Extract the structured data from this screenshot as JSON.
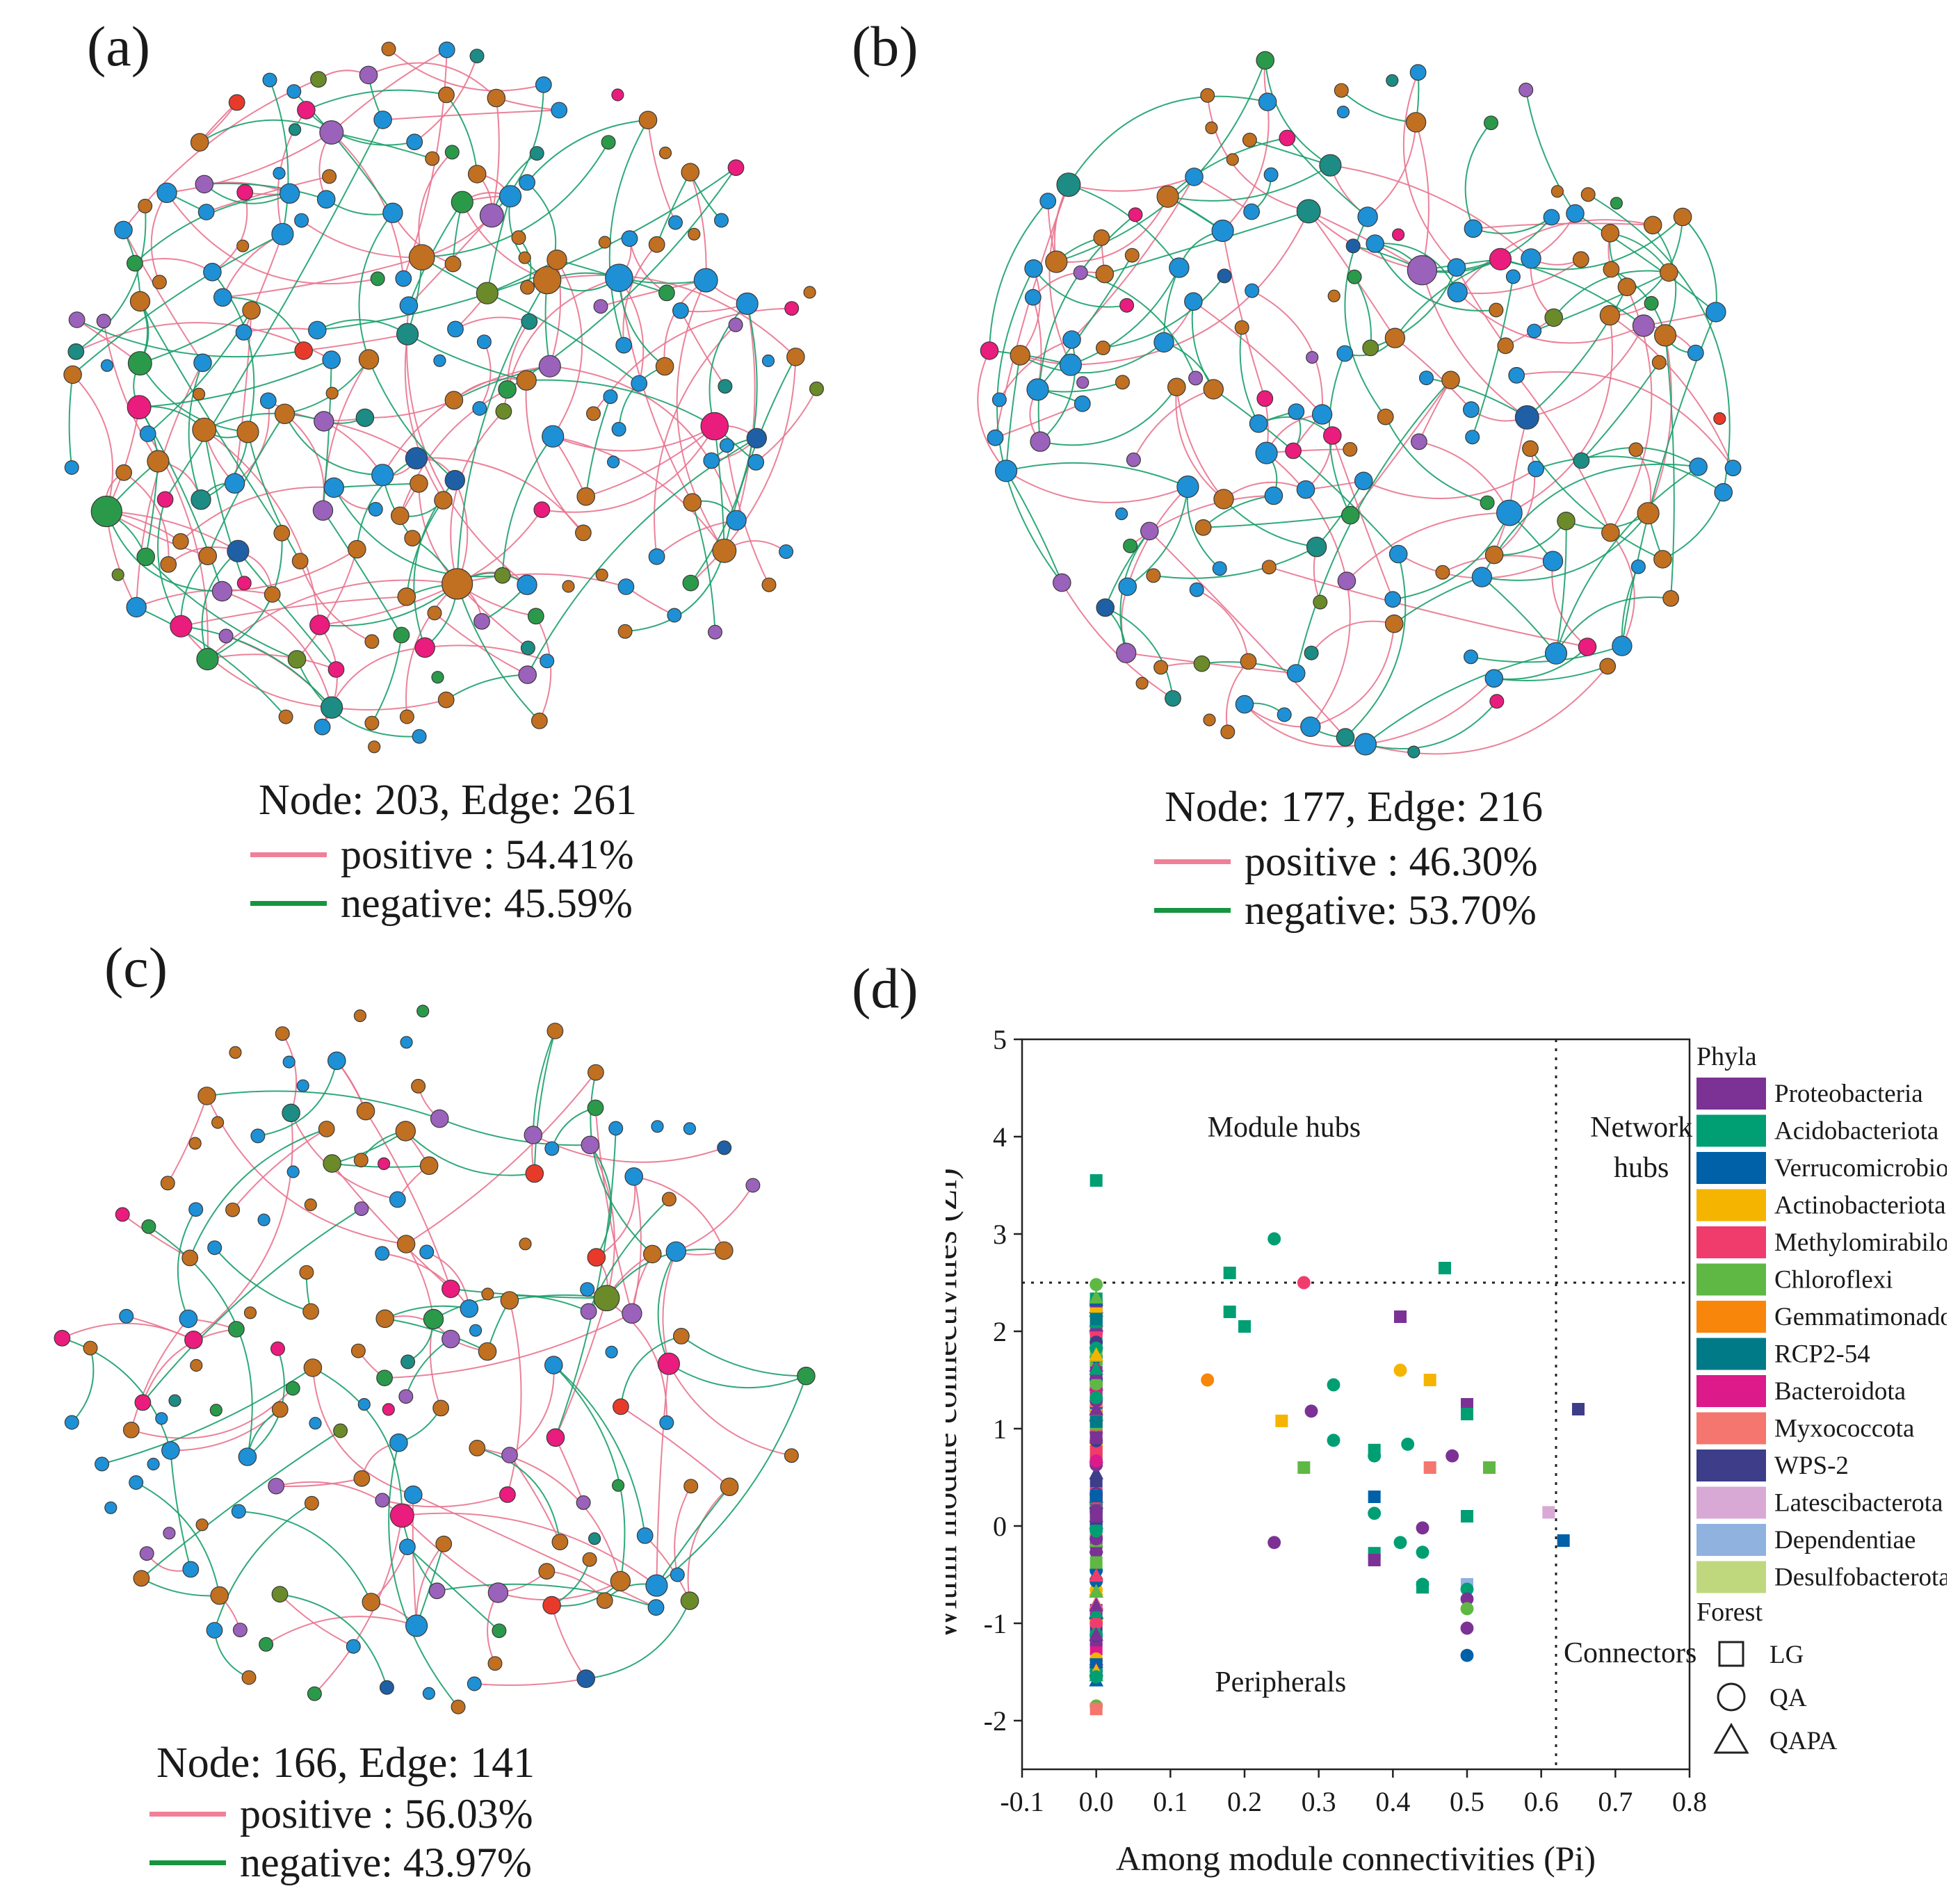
{
  "colors": {
    "positive_edge": "#e9748f",
    "negative_edge": "#1aa06c",
    "positive_legend": "#f08097",
    "negative_legend": "#16953f",
    "node_palette": [
      "#c07020",
      "#1e90d6",
      "#9a62ba",
      "#ea1c7d",
      "#2a9a4a",
      "#1c8c84",
      "#e83a2a",
      "#6b8a2a",
      "#1f5fa6"
    ]
  },
  "networks": [
    {
      "id": "a",
      "label": "(a)",
      "node_count": 203,
      "edge_count": 261,
      "stats_text": "Node: 203, Edge: 261",
      "positive_text": "positive : 54.41%",
      "negative_text": "negative: 45.59%",
      "positive_pct": 54.41,
      "negative_pct": 45.59
    },
    {
      "id": "b",
      "label": "(b)",
      "node_count": 177,
      "edge_count": 216,
      "stats_text": "Node: 177, Edge: 216",
      "positive_text": "positive : 46.30%",
      "negative_text": "negative: 53.70%",
      "positive_pct": 46.3,
      "negative_pct": 53.7
    },
    {
      "id": "c",
      "label": "(c)",
      "node_count": 166,
      "edge_count": 141,
      "stats_text": "Node: 166, Edge: 141",
      "positive_text": "positive : 56.03%",
      "negative_text": "negative: 43.97%",
      "positive_pct": 56.03,
      "negative_pct": 43.97
    }
  ],
  "chart_data": {
    "label": "(d)",
    "type": "scatter",
    "xlabel": "Among module connectivities (Pi)",
    "ylabel": "Within module connectivities (Zi)",
    "xlim": [
      -0.1,
      0.8
    ],
    "ylim": [
      -2.5,
      5
    ],
    "xticks": [
      "-0.1",
      "0.0",
      "0.1",
      "0.2",
      "0.3",
      "0.4",
      "0.5",
      "0.6",
      "0.7",
      "0.8"
    ],
    "yticks": [
      "-2",
      "-1",
      "0",
      "1",
      "2",
      "3",
      "4",
      "5"
    ],
    "thresholds": {
      "pi": 0.62,
      "zi": 2.5
    },
    "regions": [
      "Module hubs",
      "Network hubs",
      "Peripherals",
      "Connectors"
    ],
    "legend": {
      "phyla_title": "Phyla",
      "phyla": [
        {
          "name": "Proteobacteria",
          "color": "#7b3294"
        },
        {
          "name": "Acidobacteriota",
          "color": "#009e73"
        },
        {
          "name": "Verrucomicrobiota",
          "color": "#0060a8"
        },
        {
          "name": "Actinobacteriota",
          "color": "#f5b400"
        },
        {
          "name": "Methylomirabilota",
          "color": "#f03c6c"
        },
        {
          "name": "Chloroflexi",
          "color": "#5fb844"
        },
        {
          "name": "Gemmatimonadota",
          "color": "#f7860a"
        },
        {
          "name": "RCP2-54",
          "color": "#007a87"
        },
        {
          "name": "Bacteroidota",
          "color": "#dc1a8a"
        },
        {
          "name": "Myxococcota",
          "color": "#f4766e"
        },
        {
          "name": "WPS-2",
          "color": "#3d3d8a"
        },
        {
          "name": "Latescibacterota",
          "color": "#d9a9d6"
        },
        {
          "name": "Dependentiae",
          "color": "#8fb2df"
        },
        {
          "name": "Desulfobacterota",
          "color": "#bfd87e"
        }
      ],
      "forest_title": "Forest",
      "forests": [
        {
          "name": "LG",
          "shape": "square"
        },
        {
          "name": "QA",
          "shape": "circle"
        },
        {
          "name": "QAPA",
          "shape": "triangle"
        }
      ]
    },
    "points": [
      {
        "pi": 0.0,
        "zi": 3.55,
        "phylum": "Acidobacteriota",
        "forest": "LG"
      },
      {
        "pi": 0.18,
        "zi": 2.6,
        "phylum": "Acidobacteriota",
        "forest": "LG"
      },
      {
        "pi": 0.24,
        "zi": 2.95,
        "phylum": "Acidobacteriota",
        "forest": "QA"
      },
      {
        "pi": 0.28,
        "zi": 2.5,
        "phylum": "Methylomirabilota",
        "forest": "QA"
      },
      {
        "pi": 0.47,
        "zi": 2.65,
        "phylum": "Acidobacteriota",
        "forest": "LG"
      },
      {
        "pi": 0.18,
        "zi": 2.2,
        "phylum": "Acidobacteriota",
        "forest": "LG"
      },
      {
        "pi": 0.2,
        "zi": 2.05,
        "phylum": "Acidobacteriota",
        "forest": "LG"
      },
      {
        "pi": 0.41,
        "zi": 2.15,
        "phylum": "Proteobacteria",
        "forest": "LG"
      },
      {
        "pi": 0.15,
        "zi": 1.5,
        "phylum": "Gemmatimonadota",
        "forest": "QA"
      },
      {
        "pi": 0.41,
        "zi": 1.6,
        "phylum": "Actinobacteriota",
        "forest": "QA"
      },
      {
        "pi": 0.45,
        "zi": 1.5,
        "phylum": "Actinobacteriota",
        "forest": "LG"
      },
      {
        "pi": 0.32,
        "zi": 1.45,
        "phylum": "Acidobacteriota",
        "forest": "QA"
      },
      {
        "pi": 0.5,
        "zi": 1.25,
        "phylum": "Proteobacteria",
        "forest": "LG"
      },
      {
        "pi": 0.5,
        "zi": 1.15,
        "phylum": "Acidobacteriota",
        "forest": "LG"
      },
      {
        "pi": 0.65,
        "zi": 1.2,
        "phylum": "WPS-2",
        "forest": "LG"
      },
      {
        "pi": 0.29,
        "zi": 1.18,
        "phylum": "Proteobacteria",
        "forest": "QA"
      },
      {
        "pi": 0.25,
        "zi": 1.08,
        "phylum": "Actinobacteriota",
        "forest": "LG"
      },
      {
        "pi": 0.32,
        "zi": 0.88,
        "phylum": "Acidobacteriota",
        "forest": "QA"
      },
      {
        "pi": 0.375,
        "zi": 0.78,
        "phylum": "Acidobacteriota",
        "forest": "LG"
      },
      {
        "pi": 0.375,
        "zi": 0.72,
        "phylum": "Acidobacteriota",
        "forest": "QA"
      },
      {
        "pi": 0.42,
        "zi": 0.84,
        "phylum": "Acidobacteriota",
        "forest": "QA"
      },
      {
        "pi": 0.48,
        "zi": 0.72,
        "phylum": "Proteobacteria",
        "forest": "QA"
      },
      {
        "pi": 0.28,
        "zi": 0.6,
        "phylum": "Chloroflexi",
        "forest": "LG"
      },
      {
        "pi": 0.45,
        "zi": 0.6,
        "phylum": "Myxococcota",
        "forest": "LG"
      },
      {
        "pi": 0.53,
        "zi": 0.6,
        "phylum": "Chloroflexi",
        "forest": "LG"
      },
      {
        "pi": 0.375,
        "zi": 0.3,
        "phylum": "Verrucomicrobiota",
        "forest": "LG"
      },
      {
        "pi": 0.375,
        "zi": 0.13,
        "phylum": "Acidobacteriota",
        "forest": "QA"
      },
      {
        "pi": 0.5,
        "zi": 0.1,
        "phylum": "Acidobacteriota",
        "forest": "LG"
      },
      {
        "pi": 0.61,
        "zi": 0.14,
        "phylum": "Latescibacterota",
        "forest": "LG"
      },
      {
        "pi": 0.44,
        "zi": -0.02,
        "phylum": "Proteobacteria",
        "forest": "QA"
      },
      {
        "pi": 0.63,
        "zi": -0.15,
        "phylum": "Verrucomicrobiota",
        "forest": "LG"
      },
      {
        "pi": 0.24,
        "zi": -0.17,
        "phylum": "Proteobacteria",
        "forest": "QA"
      },
      {
        "pi": 0.41,
        "zi": -0.17,
        "phylum": "Acidobacteriota",
        "forest": "QA"
      },
      {
        "pi": 0.44,
        "zi": -0.27,
        "phylum": "Acidobacteriota",
        "forest": "QA"
      },
      {
        "pi": 0.375,
        "zi": -0.28,
        "phylum": "Acidobacteriota",
        "forest": "LG"
      },
      {
        "pi": 0.375,
        "zi": -0.35,
        "phylum": "Proteobacteria",
        "forest": "LG"
      },
      {
        "pi": 0.44,
        "zi": -0.6,
        "phylum": "Acidobacteriota",
        "forest": "QA"
      },
      {
        "pi": 0.44,
        "zi": -0.63,
        "phylum": "Acidobacteriota",
        "forest": "LG"
      },
      {
        "pi": 0.5,
        "zi": -0.6,
        "phylum": "Dependentiae",
        "forest": "LG"
      },
      {
        "pi": 0.5,
        "zi": -0.65,
        "phylum": "Acidobacteriota",
        "forest": "QA"
      },
      {
        "pi": 0.5,
        "zi": -0.75,
        "phylum": "Proteobacteria",
        "forest": "QA"
      },
      {
        "pi": 0.5,
        "zi": -0.85,
        "phylum": "Chloroflexi",
        "forest": "QA"
      },
      {
        "pi": 0.5,
        "zi": -1.05,
        "phylum": "Proteobacteria",
        "forest": "QA"
      },
      {
        "pi": 0.5,
        "zi": -1.33,
        "phylum": "Verrucomicrobiota",
        "forest": "QA"
      },
      {
        "pi": 0.0,
        "zi": -1.85,
        "phylum": "Chloroflexi",
        "forest": "QA"
      },
      {
        "pi": 0.0,
        "zi": -1.88,
        "phylum": "Myxococcota",
        "forest": "LG"
      },
      {
        "pi": 0.0,
        "zi": -1.55,
        "phylum": "Acidobacteriota",
        "forest": "QA"
      },
      {
        "pi": 0.0,
        "zi": 2.48,
        "phylum": "Chloroflexi",
        "forest": "QA"
      },
      {
        "pi": 0.0,
        "zi": 2.35,
        "phylum": "Chloroflexi",
        "forest": "QAPA"
      }
    ]
  }
}
